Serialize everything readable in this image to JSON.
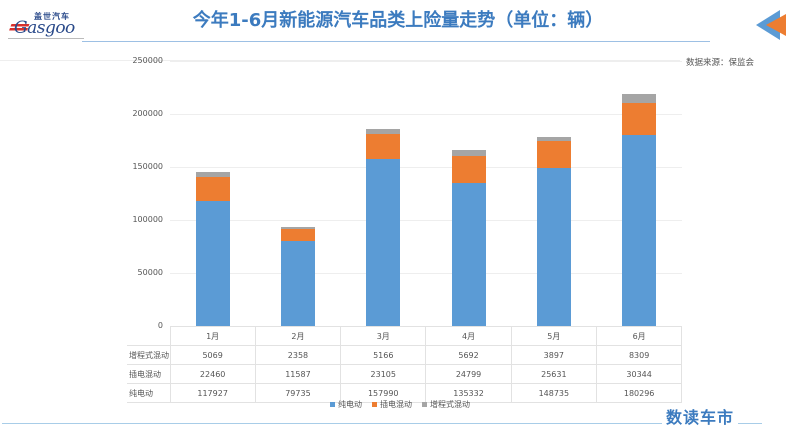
{
  "header": {
    "logo_cn": "盖世汽车",
    "logo_en": "Gasgoo",
    "title": "今年1-6月新能源汽车品类上险量走势（单位：辆）"
  },
  "source": "数据来源：保监会",
  "brand": "数读车市",
  "colors": {
    "pure_ev": "#5b9bd5",
    "phev": "#ed7d31",
    "erev": "#a5a5a5",
    "title": "#3c7bbf"
  },
  "table": {
    "rows": [
      {
        "label": "增程式混动",
        "values": [
          "5069",
          "2358",
          "5166",
          "5692",
          "3897",
          "8309"
        ]
      },
      {
        "label": "插电混动",
        "values": [
          "22460",
          "11587",
          "23105",
          "24799",
          "25631",
          "30344"
        ]
      },
      {
        "label": "纯电动",
        "values": [
          "117927",
          "79735",
          "157990",
          "135332",
          "148735",
          "180296"
        ]
      }
    ]
  },
  "legend": [
    "纯电动",
    "插电混动",
    "增程式混动"
  ],
  "chart_data": {
    "type": "bar",
    "stacked": true,
    "title": "今年1-6月新能源汽车品类上险量走势（单位：辆）",
    "xlabel": "",
    "ylabel": "",
    "categories": [
      "1月",
      "2月",
      "3月",
      "4月",
      "5月",
      "6月"
    ],
    "series": [
      {
        "name": "纯电动",
        "values": [
          117927,
          79735,
          157990,
          135332,
          148735,
          180296
        ]
      },
      {
        "name": "插电混动",
        "values": [
          22460,
          11587,
          23105,
          24799,
          25631,
          30344
        ]
      },
      {
        "name": "增程式混动",
        "values": [
          5069,
          2358,
          5166,
          5692,
          3897,
          8309
        ]
      }
    ],
    "yticks": [
      "0",
      "50000",
      "100000",
      "150000",
      "200000",
      "250000"
    ],
    "ylim": [
      0,
      250000
    ],
    "grid": true,
    "legend_position": "bottom"
  }
}
